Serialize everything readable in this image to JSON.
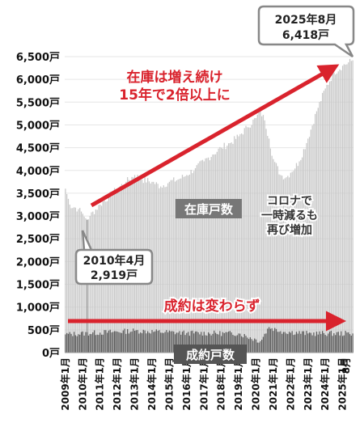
{
  "chart_data": {
    "type": "bar",
    "title": "",
    "xlabel": "",
    "ylabel": "",
    "ylim": [
      0,
      6500
    ],
    "y_ticks": [
      "0戸",
      "500戸",
      "1,000戸",
      "1,500戸",
      "2,000戸",
      "2,500戸",
      "3,000戸",
      "3,500戸",
      "4,000戸",
      "4,500戸",
      "5,000戸",
      "5,500戸",
      "6,000戸",
      "6,500戸"
    ],
    "x_ticks": [
      "2009年1月",
      "2010年1月",
      "2011年1月",
      "2012年1月",
      "2013年1月",
      "2014年1月",
      "2015年1月",
      "2016年1月",
      "2017年1月",
      "2018年1月",
      "2019年1月",
      "2020年1月",
      "2021年1月",
      "2022年1月",
      "2023年1月",
      "2024年1月",
      "2025年1月",
      "8月"
    ],
    "x_range": [
      "2009-01",
      "2025-08"
    ],
    "series": [
      {
        "name": "在庫戸数",
        "color": "#c8c8c8",
        "anchors": [
          [
            "2009-01",
            3600
          ],
          [
            "2009-04",
            3250
          ],
          [
            "2009-10",
            3150
          ],
          [
            "2010-01",
            3050
          ],
          [
            "2010-03",
            2950
          ],
          [
            "2010-04",
            2919
          ],
          [
            "2010-06",
            3000
          ],
          [
            "2011-01",
            3250
          ],
          [
            "2012-01",
            3600
          ],
          [
            "2012-07",
            3750
          ],
          [
            "2013-01",
            3900
          ],
          [
            "2013-06",
            3800
          ],
          [
            "2014-01",
            3750
          ],
          [
            "2014-07",
            3650
          ],
          [
            "2015-01",
            3750
          ],
          [
            "2015-07",
            3800
          ],
          [
            "2016-01",
            3900
          ],
          [
            "2016-07",
            4050
          ],
          [
            "2017-01",
            4200
          ],
          [
            "2017-07",
            4350
          ],
          [
            "2018-01",
            4500
          ],
          [
            "2018-07",
            4600
          ],
          [
            "2019-01",
            4750
          ],
          [
            "2019-07",
            4950
          ],
          [
            "2020-01",
            5150
          ],
          [
            "2020-04",
            5300
          ],
          [
            "2020-07",
            5100
          ],
          [
            "2020-10",
            4700
          ],
          [
            "2021-01",
            4250
          ],
          [
            "2021-06",
            3900
          ],
          [
            "2021-10",
            3850
          ],
          [
            "2022-01",
            3950
          ],
          [
            "2022-07",
            4200
          ],
          [
            "2023-01",
            4700
          ],
          [
            "2023-07",
            5300
          ],
          [
            "2024-01",
            5800
          ],
          [
            "2024-07",
            6150
          ],
          [
            "2025-01",
            6300
          ],
          [
            "2025-08",
            6418
          ]
        ]
      },
      {
        "name": "成約戸数",
        "color": "#555555",
        "anchors": [
          [
            "2009-01",
            400
          ],
          [
            "2013-01",
            480
          ],
          [
            "2016-01",
            430
          ],
          [
            "2019-01",
            420
          ],
          [
            "2020-04",
            250
          ],
          [
            "2020-10",
            560
          ],
          [
            "2021-06",
            470
          ],
          [
            "2023-01",
            420
          ],
          [
            "2025-08",
            420
          ]
        ]
      }
    ],
    "annotations": {
      "latest": {
        "date": "2025年8月",
        "value": "6,418戸"
      },
      "low": {
        "date": "2010年4月",
        "value": "2,919戸"
      },
      "stock_trend": [
        "在庫は増え続け",
        "15年で2倍以上に"
      ],
      "covid": [
        "コロナで",
        "一時減るも",
        "再び増加"
      ],
      "sales_trend": "成約は変わらず",
      "stock_label": "在庫戸数",
      "sales_label": "成約戸数"
    },
    "colors": {
      "accent": "#d9232d",
      "callout_border": "#888888",
      "label_box": "#777777"
    }
  }
}
